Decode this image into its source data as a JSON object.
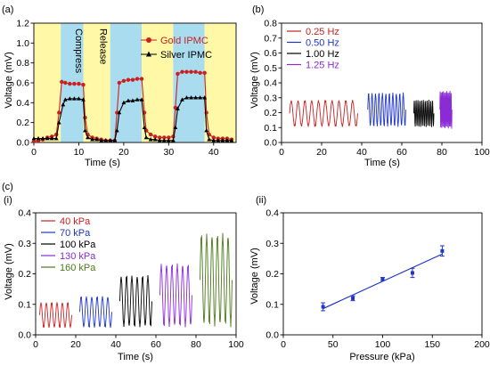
{
  "chart_data": [
    {
      "id": "a",
      "panel_label": "(a)",
      "type": "line",
      "xlabel": "Time (s)",
      "ylabel": "Voltage (mV)",
      "xlim": [
        0,
        45
      ],
      "ylim": [
        0.0,
        1.2
      ],
      "xticks": [
        "0",
        "10",
        "20",
        "30",
        "40"
      ],
      "yticks": [
        "0.0",
        "0.2",
        "0.4",
        "0.6",
        "0.8",
        "1.0",
        "1.2"
      ],
      "legend_position": "top-right",
      "bands": [
        {
          "from": 0,
          "to": 6,
          "color": "#fff8a6"
        },
        {
          "from": 6,
          "to": 11,
          "color": "#a9dcef",
          "label": "Compress"
        },
        {
          "from": 11,
          "to": 17,
          "color": "#fff8a6",
          "label": "Release"
        },
        {
          "from": 17,
          "to": 24,
          "color": "#a9dcef"
        },
        {
          "from": 24,
          "to": 31,
          "color": "#fff8a6"
        },
        {
          "from": 31,
          "to": 38,
          "color": "#a9dcef"
        },
        {
          "from": 38,
          "to": 45,
          "color": "#fff8a6"
        }
      ],
      "series": [
        {
          "name": "Gold IPMC",
          "color": "#cc2020",
          "marker": "circle",
          "x": [
            0,
            1,
            2,
            3,
            4,
            5,
            5.6,
            6.2,
            7,
            8,
            9,
            10,
            11,
            11.4,
            12,
            13,
            14,
            15,
            16,
            17,
            18,
            18.5,
            19,
            20,
            21,
            22,
            23,
            24,
            24.6,
            25,
            26,
            27,
            28,
            29,
            30,
            31,
            31.5,
            32,
            33,
            34,
            35,
            36,
            37,
            38,
            38.4,
            39,
            40,
            41,
            42,
            43,
            44
          ],
          "y": [
            0.01,
            0.02,
            0.03,
            0.05,
            0.06,
            0.08,
            0.3,
            0.61,
            0.6,
            0.59,
            0.59,
            0.59,
            0.58,
            0.25,
            0.08,
            0.05,
            0.04,
            0.03,
            0.02,
            0.02,
            0.02,
            0.3,
            0.6,
            0.62,
            0.63,
            0.63,
            0.64,
            0.64,
            0.3,
            0.12,
            0.08,
            0.06,
            0.05,
            0.05,
            0.05,
            0.06,
            0.35,
            0.69,
            0.71,
            0.71,
            0.71,
            0.71,
            0.7,
            0.7,
            0.3,
            0.08,
            0.05,
            0.04,
            0.04,
            0.04,
            0.03
          ]
        },
        {
          "name": "Silver IPMC",
          "color": "#000000",
          "marker": "triangle",
          "x": [
            0,
            1,
            2,
            3,
            4,
            5,
            5.6,
            6.5,
            7,
            8,
            9,
            10,
            11,
            11.4,
            12,
            13,
            14,
            15,
            16,
            17,
            18,
            18.5,
            19,
            20,
            21,
            22,
            23,
            24,
            24.6,
            25,
            26,
            27,
            28,
            29,
            30,
            31,
            31.5,
            32,
            33,
            34,
            35,
            36,
            37,
            38,
            38.4,
            39,
            40,
            41,
            42,
            43,
            44
          ],
          "y": [
            0.04,
            0.04,
            0.04,
            0.04,
            0.04,
            0.04,
            0.2,
            0.38,
            0.43,
            0.44,
            0.44,
            0.44,
            0.43,
            0.12,
            0.05,
            0.03,
            0.03,
            0.02,
            0.02,
            0.02,
            0.02,
            0.12,
            0.3,
            0.4,
            0.42,
            0.42,
            0.43,
            0.43,
            0.15,
            0.05,
            0.03,
            0.03,
            0.02,
            0.02,
            0.02,
            0.02,
            0.15,
            0.34,
            0.43,
            0.45,
            0.45,
            0.45,
            0.45,
            0.45,
            0.12,
            0.03,
            0.02,
            0.02,
            0.02,
            0.02,
            0.02
          ]
        }
      ]
    },
    {
      "id": "b",
      "panel_label": "(b)",
      "type": "line",
      "xlabel": "Time (s)",
      "ylabel": "Voltage (mV)",
      "xlim": [
        0,
        100
      ],
      "ylim": [
        0.0,
        0.8
      ],
      "xticks": [
        "0",
        "20",
        "40",
        "60",
        "80",
        "100"
      ],
      "yticks": [
        "0.0",
        "0.1",
        "0.2",
        "0.3",
        "0.4",
        "0.5",
        "0.6",
        "0.7",
        "0.8"
      ],
      "legend_position": "top-left",
      "series": [
        {
          "name": "0.25 Hz",
          "color": "#cc2020",
          "t_start": 4,
          "t_end": 38,
          "cycles": 10,
          "min": 0.1,
          "max": 0.29
        },
        {
          "name": "0.50 Hz",
          "color": "#1f35c8",
          "t_start": 43,
          "t_end": 62,
          "cycles": 11,
          "min": 0.1,
          "max": 0.34
        },
        {
          "name": "1.00 Hz",
          "color": "#000000",
          "t_start": 66,
          "t_end": 76,
          "cycles": 11,
          "min": 0.1,
          "max": 0.29
        },
        {
          "name": "1.25 Hz",
          "color": "#8b2bd6",
          "t_start": 79,
          "t_end": 85,
          "cycles": 11,
          "min": 0.09,
          "max": 0.35
        }
      ]
    },
    {
      "id": "c_i",
      "panel_label": "(c)",
      "subpanel_label": "(i)",
      "type": "line",
      "xlabel": "Time (s)",
      "ylabel": "Voltage (mV)",
      "xlim": [
        0,
        100
      ],
      "ylim": [
        0.0,
        0.4
      ],
      "xticks": [
        "0",
        "20",
        "40",
        "60",
        "80",
        "100"
      ],
      "yticks": [
        "0.0",
        "0.1",
        "0.2",
        "0.3",
        "0.4"
      ],
      "legend_position": "top-left",
      "series": [
        {
          "name": "40 kPa",
          "color": "#cc2020",
          "t_start": 2,
          "t_end": 18,
          "cycles": 6,
          "min": 0.02,
          "max": 0.11
        },
        {
          "name": "70 kPa",
          "color": "#1f35c8",
          "t_start": 22,
          "t_end": 38,
          "cycles": 6,
          "min": 0.02,
          "max": 0.13
        },
        {
          "name": "100 kPa",
          "color": "#000000",
          "t_start": 42,
          "t_end": 58,
          "cycles": 6,
          "min": 0.02,
          "max": 0.2
        },
        {
          "name": "130 kPa",
          "color": "#8b2bd6",
          "t_start": 62,
          "t_end": 78,
          "cycles": 6,
          "min": 0.02,
          "max": 0.24
        },
        {
          "name": "160 kPa",
          "color": "#4a7a1a",
          "t_start": 82,
          "t_end": 98,
          "cycles": 6,
          "min": 0.02,
          "max": 0.34
        }
      ]
    },
    {
      "id": "c_ii",
      "subpanel_label": "(ii)",
      "type": "scatter",
      "xlabel": "Pressure (kPa)",
      "ylabel": "Voltage (mV)",
      "xlim": [
        0,
        200
      ],
      "ylim": [
        0.0,
        0.4
      ],
      "xticks": [
        "0",
        "50",
        "100",
        "150",
        "200"
      ],
      "yticks": [
        "0.0",
        "0.1",
        "0.2",
        "0.3",
        "0.4"
      ],
      "color": "#1f35c8",
      "x": [
        40,
        70,
        100,
        130,
        160
      ],
      "y": [
        0.092,
        0.12,
        0.183,
        0.203,
        0.275
      ],
      "error": [
        0.013,
        0.008,
        0.005,
        0.015,
        0.017
      ],
      "fit": {
        "x": [
          40,
          160
        ],
        "y": [
          0.086,
          0.265
        ]
      }
    }
  ]
}
